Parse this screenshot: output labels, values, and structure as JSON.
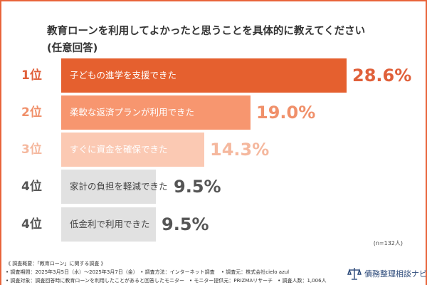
{
  "chart_data": {
    "type": "bar",
    "orientation": "horizontal",
    "title": "教育ローンを利用してよかったと思うことを具体的に教えてください",
    "subtitle": "(任意回答)",
    "categories": [
      "子どもの進学を支援できた",
      "柔軟な返済プランが利用できた",
      "すぐに資金を確保できた",
      "家計の負担を軽減できた",
      "低金利で利用できた"
    ],
    "ranks": [
      "1位",
      "2位",
      "3位",
      "4位",
      "4位"
    ],
    "values": [
      28.6,
      19.0,
      14.3,
      9.5,
      9.5
    ],
    "labels": [
      "28.6%",
      "19.0%",
      "14.3%",
      "9.5%",
      "9.5%"
    ],
    "bar_colors": [
      "#e5602f",
      "#f7966f",
      "#fbc9b3",
      "#e1e1e1",
      "#e1e1e1"
    ],
    "rank_colors": [
      "#e0603a",
      "#f0906a",
      "#f5b89e",
      "#555555",
      "#555555"
    ],
    "text_colors": [
      "#ffffff",
      "#ffffff",
      "#ffffff",
      "#444444",
      "#444444"
    ],
    "xlim": [
      0,
      28.6
    ],
    "grid": false,
    "sample": "(n=132人)"
  },
  "notes": [
    "《 調査概要：「教育ローン」に関する調査 》",
    "• 調査期間：2025年3月5日（水）～2025年3月7日（金）　• 調査方法：インターネット調査　 • 調査元：株式会社cielo azul",
    "• 調査対象：調査回答時に教育ローンを利用したことがあると回答したモニター　• モニター提供元：PRIZMAリサーチ　• 調査人数：1,006人"
  ],
  "logo": {
    "text": "債務整理相談ナビ",
    "icon": "scales-icon",
    "color": "#2c4a7a"
  },
  "frame_color": "#e8643a"
}
